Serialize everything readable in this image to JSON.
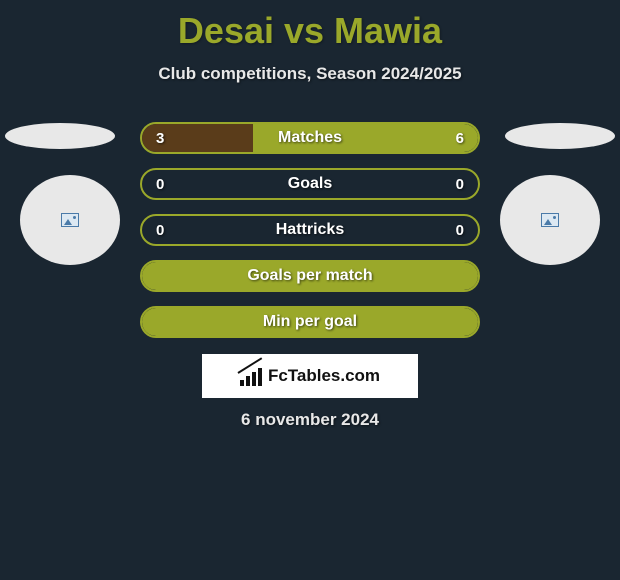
{
  "page": {
    "title": "Desai vs Mawia",
    "subtitle": "Club competitions, Season 2024/2025",
    "date": "6 november 2024",
    "background_color": "#1a2631",
    "title_color": "#9aa82a",
    "text_color": "#e8e8e8"
  },
  "brand": {
    "text": "FcTables.com"
  },
  "colors": {
    "border": "#9aa82a",
    "fill_olive": "#9aa82a",
    "fill_brown": "#5a3c1a",
    "badge_bg": "#e8e8e8"
  },
  "stats": [
    {
      "label": "Matches",
      "left_value": "3",
      "right_value": "6",
      "left_pct": 33,
      "right_pct": 67,
      "left_color": "#5a3c1a",
      "right_color": "#9aa82a",
      "show_values": true
    },
    {
      "label": "Goals",
      "left_value": "0",
      "right_value": "0",
      "left_pct": 0,
      "right_pct": 0,
      "left_color": "#5a3c1a",
      "right_color": "#9aa82a",
      "show_values": true
    },
    {
      "label": "Hattricks",
      "left_value": "0",
      "right_value": "0",
      "left_pct": 0,
      "right_pct": 0,
      "left_color": "#5a3c1a",
      "right_color": "#9aa82a",
      "show_values": true
    },
    {
      "label": "Goals per match",
      "left_value": "",
      "right_value": "",
      "left_pct": 0,
      "right_pct": 100,
      "left_color": "#5a3c1a",
      "right_color": "#9aa82a",
      "show_values": false
    },
    {
      "label": "Min per goal",
      "left_value": "",
      "right_value": "",
      "left_pct": 0,
      "right_pct": 100,
      "left_color": "#5a3c1a",
      "right_color": "#9aa82a",
      "show_values": false
    }
  ]
}
